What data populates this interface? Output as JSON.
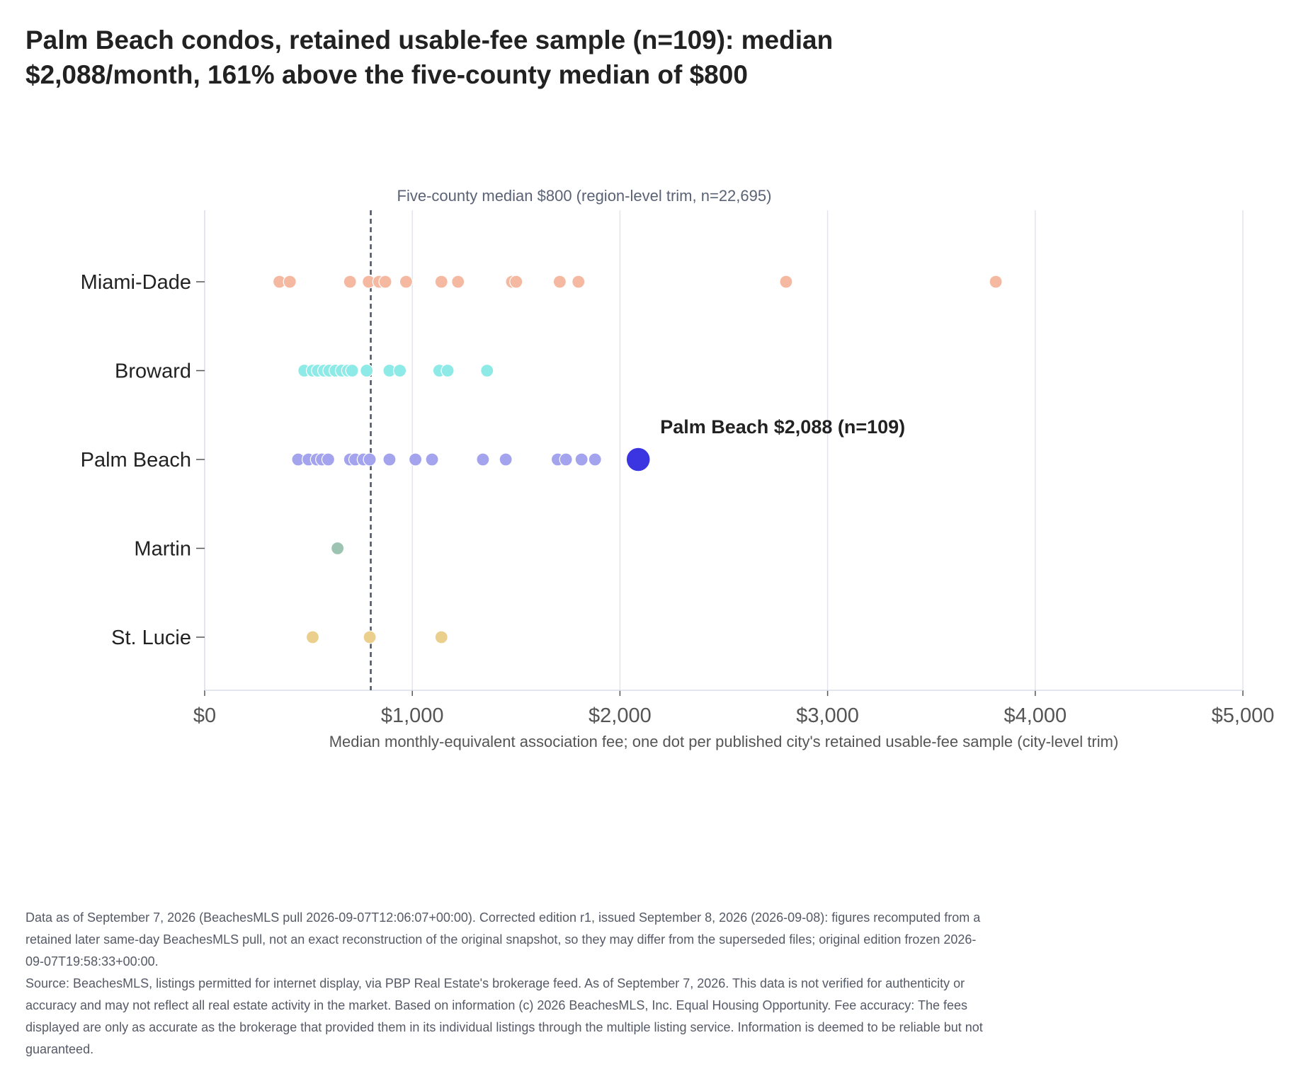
{
  "chart_data": {
    "type": "scatter",
    "title": "Palm Beach condos, retained usable-fee sample (n=109): median $2,088/month, 161% above the five-county median of $800",
    "title_lines": [
      "Palm Beach condos, retained usable-fee sample (n=109): median",
      "$2,088/month, 161% above the five-county median of $800"
    ],
    "xlabel": "Median monthly-equivalent association fee; one dot per published city's retained usable-fee sample (city-level trim)",
    "ylabel": "",
    "xlim": [
      0,
      5000
    ],
    "x_ticks": [
      0,
      1000,
      2000,
      3000,
      4000,
      5000
    ],
    "x_tick_labels": [
      "$0",
      "$1,000",
      "$2,000",
      "$3,000",
      "$4,000",
      "$5,000"
    ],
    "grid": "vertical",
    "categories": [
      "Miami-Dade",
      "Broward",
      "Palm Beach",
      "Martin",
      "St. Lucie"
    ],
    "series": [
      {
        "category": "Miami-Dade",
        "color": "#f4b9a0",
        "values": [
          360,
          410,
          700,
          790,
          840,
          870,
          970,
          1140,
          1220,
          1480,
          1500,
          1710,
          1800,
          2800,
          3810
        ]
      },
      {
        "category": "Broward",
        "color": "#8eeae6",
        "values": [
          480,
          520,
          545,
          575,
          600,
          630,
          660,
          690,
          710,
          780,
          890,
          940,
          1130,
          1170,
          1360
        ]
      },
      {
        "category": "Palm Beach",
        "color": "#a3a3ee",
        "values": [
          450,
          500,
          540,
          565,
          595,
          700,
          725,
          765,
          795,
          890,
          1015,
          1095,
          1340,
          1450,
          1700,
          1740,
          1815,
          1880
        ]
      },
      {
        "category": "Martin",
        "color": "#9dc3b2",
        "values": [
          640
        ]
      },
      {
        "category": "St. Lucie",
        "color": "#ead08c",
        "values": [
          520,
          795,
          1140
        ]
      }
    ],
    "highlight": {
      "category": "Palm Beach",
      "value": 2088,
      "color": "#3a35e0",
      "label": "Palm Beach $2,088 (n=109)"
    },
    "reference_line": {
      "value": 800,
      "label": "Five-county median $800 (region-level trim, n=22,695)",
      "style": "dashed",
      "color": "#4a5160"
    }
  },
  "footnote": {
    "line1": "Data as of September 7, 2026 (BeachesMLS pull 2026-09-07T12:06:07+00:00). Corrected edition r1, issued September 8, 2026 (2026-09-08): figures recomputed from a retained later same-day BeachesMLS pull, not an exact reconstruction of the original snapshot, so they may differ from the superseded files; original edition frozen 2026-09-07T19:58:33+00:00.",
    "line2": "Source: BeachesMLS, listings permitted for internet display, via PBP Real Estate's brokerage feed. As of September 7, 2026. This data is not verified for authenticity or accuracy and may not reflect all real estate activity in the market. Based on information (c) 2026 BeachesMLS, Inc. Equal Housing Opportunity. Fee accuracy: The fees displayed are only as accurate as the brokerage that provided them in its individual listings through the multiple listing service. Information is deemed to be reliable but not guaranteed."
  }
}
